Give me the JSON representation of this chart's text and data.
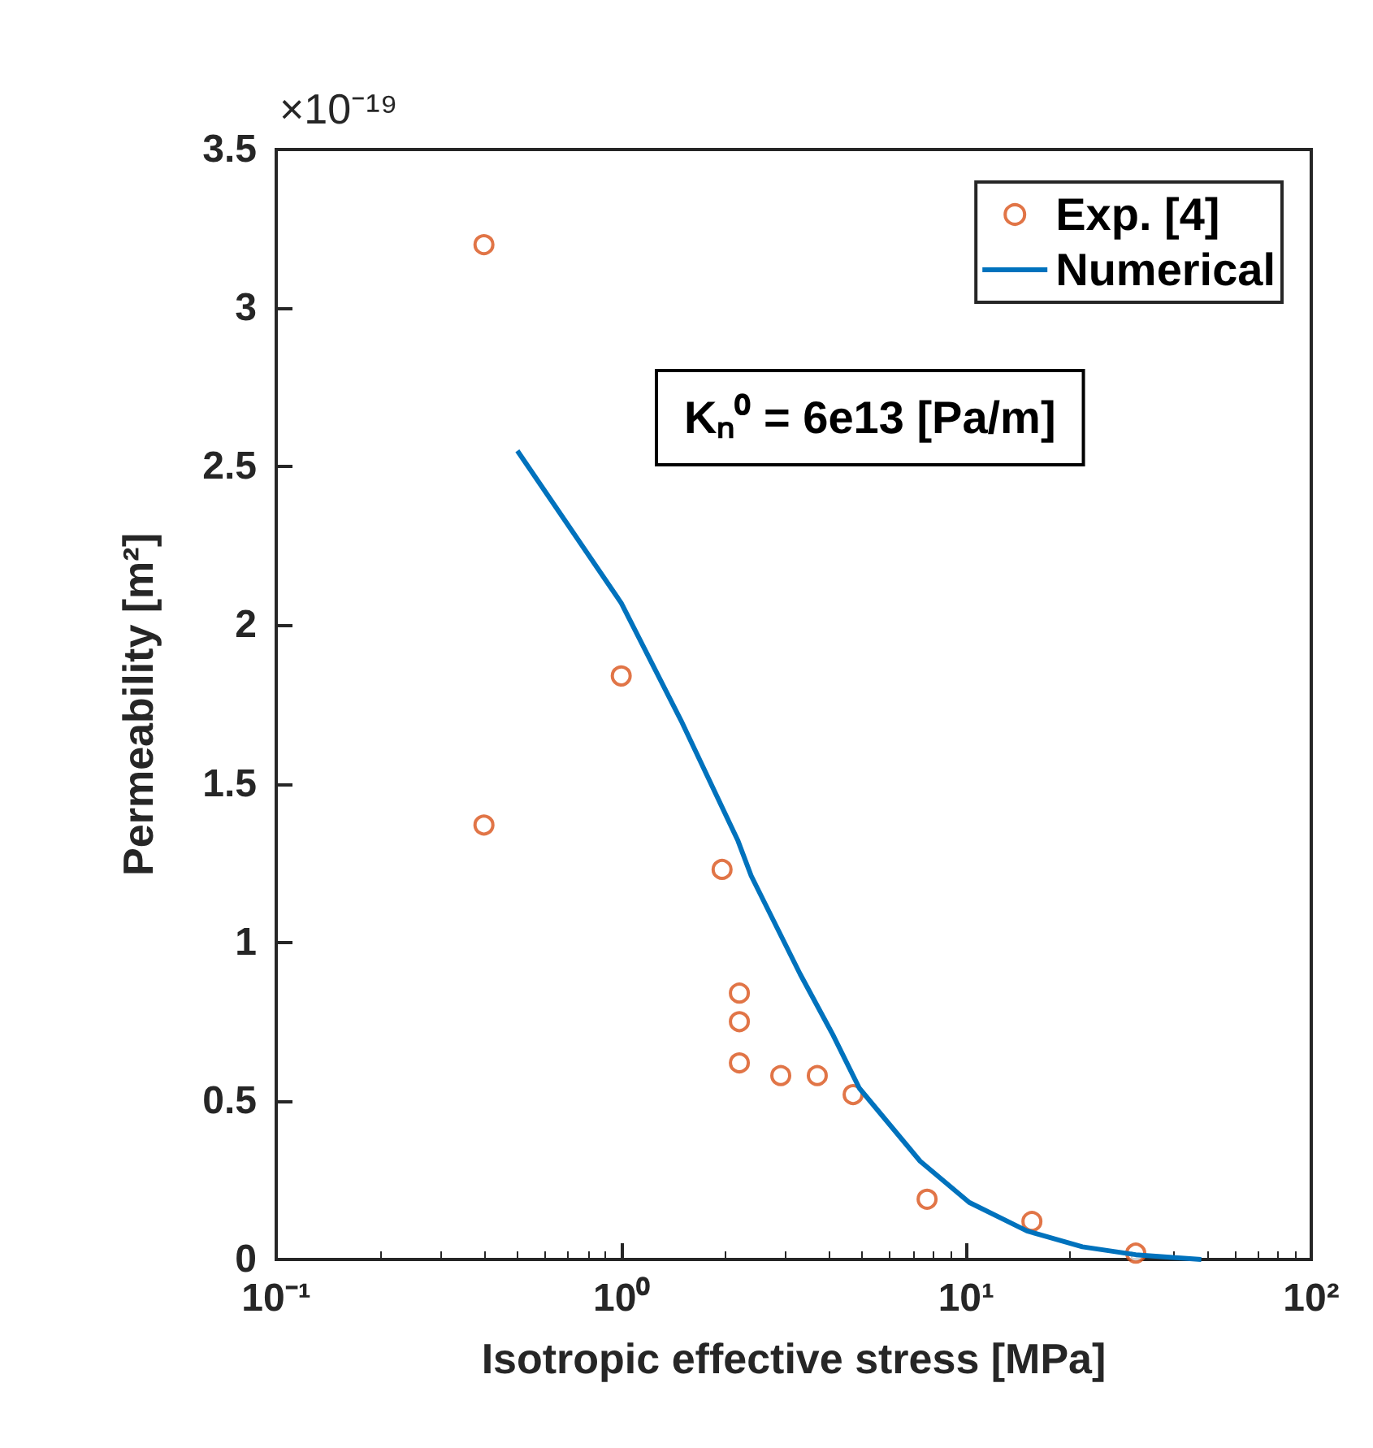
{
  "chart_data": {
    "type": "scatter",
    "xlabel": "Isotropic effective stress [MPa]",
    "ylabel": "Permeability [m²]",
    "annotations": [
      "×10⁻¹⁹",
      "Kₙ⁰ = 6e13 [Pa/m]"
    ],
    "log": "x",
    "grid": false,
    "legend": "top right",
    "xlim": [
      0.1,
      100
    ],
    "xticks": [
      {
        "value": 0.1,
        "label": "10⁻¹"
      },
      {
        "value": 1,
        "label": "10⁰"
      },
      {
        "value": 10,
        "label": "10¹"
      },
      {
        "value": 100,
        "label": "10²"
      }
    ],
    "ylim": [
      0,
      3.5
    ],
    "yticks": [
      0,
      0.5,
      1,
      1.5,
      2,
      2.5,
      3,
      3.5
    ],
    "series": [
      {
        "name": "Exp. [4]",
        "marker": "circle",
        "color": "#d95319",
        "x": [
          0.4,
          0.4,
          1,
          1.96,
          2.2,
          2.2,
          2.2,
          2.9,
          3.7,
          4.7,
          7.7,
          15.5,
          31
        ],
        "values": [
          3.2,
          1.37,
          1.84,
          1.23,
          0.84,
          0.75,
          0.62,
          0.58,
          0.58,
          0.52,
          0.19,
          0.12,
          0.02
        ]
      },
      {
        "name": "Numerical",
        "type": "line",
        "marker": "none",
        "line_style": "solid",
        "color": "#0072bd",
        "x": [
          0.5,
          1,
          1.49,
          2.18,
          2.38,
          3.3,
          4.1,
          4.9,
          7.35,
          10.2,
          15,
          21.7,
          31,
          48
        ],
        "values": [
          2.55,
          2.07,
          1.7,
          1.32,
          1.21,
          0.9,
          0.71,
          0.54,
          0.31,
          0.18,
          0.09,
          0.04,
          0.015,
          0
        ]
      }
    ]
  }
}
